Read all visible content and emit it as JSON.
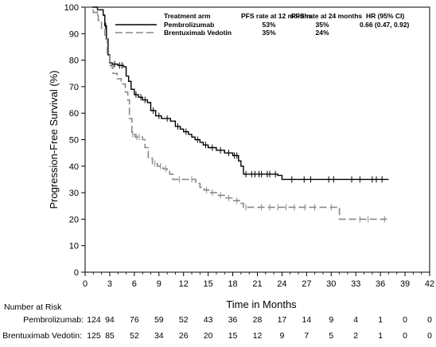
{
  "chart_data": {
    "type": "line",
    "subtype": "kaplan-meier",
    "title": "",
    "xlabel": "Time in Months",
    "ylabel": "Progression-Free Survival (%)",
    "xlim": [
      0,
      42
    ],
    "ylim": [
      0,
      100
    ],
    "x_ticks": [
      0,
      3,
      6,
      9,
      12,
      15,
      18,
      21,
      24,
      27,
      30,
      33,
      36,
      39,
      42
    ],
    "y_ticks": [
      0,
      10,
      20,
      30,
      40,
      50,
      60,
      70,
      80,
      90,
      100
    ],
    "grid": false,
    "legend": {
      "placement": "top-right",
      "headers": [
        "Treatment arm",
        "PFS rate at 12 months",
        "PFS rate at 24 months",
        "HR (95% CI)"
      ],
      "rows": [
        {
          "arm": "Pembrolizumab",
          "pfs12": "53%",
          "pfs24": "35%",
          "hr": "0.66 (0.47, 0.92)",
          "line_style": "solid"
        },
        {
          "arm": "Brentuximab Vedotin",
          "pfs12": "35%",
          "pfs24": "24%",
          "hr": "",
          "line_style": "dashed"
        }
      ]
    },
    "series": [
      {
        "name": "Pembrolizumab",
        "color": "#000000",
        "line_style": "solid",
        "steps": [
          [
            0,
            100
          ],
          [
            1.5,
            99
          ],
          [
            2.2,
            97
          ],
          [
            2.4,
            93
          ],
          [
            2.6,
            88
          ],
          [
            2.8,
            82
          ],
          [
            3,
            79
          ],
          [
            3.3,
            78.5
          ],
          [
            4,
            78
          ],
          [
            4.7,
            77.5
          ],
          [
            5,
            74
          ],
          [
            5.3,
            72
          ],
          [
            5.6,
            69
          ],
          [
            6,
            67
          ],
          [
            6.5,
            66
          ],
          [
            7,
            65
          ],
          [
            7.6,
            64
          ],
          [
            8,
            61
          ],
          [
            8.6,
            59
          ],
          [
            9.3,
            58
          ],
          [
            10.4,
            57
          ],
          [
            11,
            55
          ],
          [
            11.6,
            54
          ],
          [
            12,
            53
          ],
          [
            12.6,
            52
          ],
          [
            13,
            51
          ],
          [
            13.4,
            50
          ],
          [
            14,
            49
          ],
          [
            14.4,
            48
          ],
          [
            15,
            47
          ],
          [
            16,
            46
          ],
          [
            17,
            45
          ],
          [
            18,
            44
          ],
          [
            18.7,
            42
          ],
          [
            19,
            40
          ],
          [
            19.3,
            37
          ],
          [
            23.5,
            36.5
          ],
          [
            24,
            35
          ],
          [
            37,
            35
          ]
        ],
        "censor_x": [
          2.5,
          3.6,
          4.2,
          4.5,
          6.2,
          6.8,
          7.3,
          8.3,
          9,
          10,
          11.3,
          12.3,
          13.7,
          14.7,
          15.5,
          16.5,
          17.5,
          18.2,
          18.5,
          19.6,
          20.3,
          20.7,
          21.2,
          21.5,
          22.2,
          22.5,
          23.2,
          25.2,
          26.7,
          27.5,
          29.7,
          30.3,
          32.5,
          33.5,
          35,
          35.5,
          36.2
        ]
      },
      {
        "name": "Brentuximab Vedotin",
        "color": "#888888",
        "line_style": "dashed",
        "steps": [
          [
            0,
            100
          ],
          [
            1,
            98
          ],
          [
            1.6,
            95
          ],
          [
            2,
            92
          ],
          [
            2.4,
            88
          ],
          [
            2.7,
            82
          ],
          [
            3,
            78
          ],
          [
            3.4,
            75
          ],
          [
            3.9,
            73
          ],
          [
            4.4,
            71
          ],
          [
            4.9,
            68
          ],
          [
            5.2,
            65
          ],
          [
            5.4,
            58
          ],
          [
            5.7,
            52
          ],
          [
            6.1,
            51
          ],
          [
            7,
            50
          ],
          [
            7.3,
            47
          ],
          [
            7.7,
            43
          ],
          [
            8.2,
            41
          ],
          [
            8.8,
            40
          ],
          [
            9.5,
            39
          ],
          [
            10,
            38
          ],
          [
            10.3,
            37
          ],
          [
            10.7,
            35
          ],
          [
            13.5,
            33.5
          ],
          [
            14,
            32
          ],
          [
            14.5,
            31
          ],
          [
            15.3,
            30
          ],
          [
            16,
            29
          ],
          [
            17,
            28
          ],
          [
            18,
            27
          ],
          [
            19,
            26
          ],
          [
            19.3,
            24.5
          ],
          [
            30.7,
            24
          ],
          [
            31,
            20
          ],
          [
            37,
            19.5
          ]
        ],
        "censor_x": [
          1.5,
          3.2,
          5.8,
          6.3,
          6.6,
          8.5,
          9.2,
          9.8,
          11.5,
          13,
          14.8,
          15.5,
          16.5,
          17.5,
          18.5,
          19.6,
          21.5,
          22.5,
          23.5,
          24.5,
          25.5,
          26.8,
          28,
          30,
          33.5,
          34.5,
          36.5
        ]
      }
    ],
    "risk_table": {
      "heading": "Number at Risk",
      "rows": [
        {
          "label": "Pembrolizumab:",
          "values": [
            "124",
            "94",
            "76",
            "59",
            "52",
            "43",
            "36",
            "28",
            "17",
            "14",
            "9",
            "4",
            "1",
            "0",
            "0"
          ]
        },
        {
          "label": "Brentuximab Vedotin:",
          "values": [
            "125",
            "85",
            "52",
            "34",
            "26",
            "20",
            "15",
            "12",
            "9",
            "7",
            "5",
            "2",
            "1",
            "0",
            "0"
          ]
        }
      ]
    }
  }
}
